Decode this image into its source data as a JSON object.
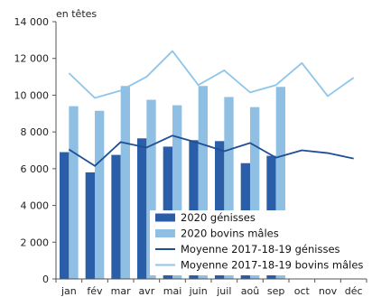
{
  "chart_data": {
    "type": "bar",
    "unit_label": "en têtes",
    "categories": [
      "jan",
      "fév",
      "mar",
      "avr",
      "mai",
      "juin",
      "juil",
      "aoû",
      "sep",
      "oct",
      "nov",
      "déc"
    ],
    "ylim": [
      0,
      14000
    ],
    "yticks": [
      0,
      2000,
      4000,
      6000,
      8000,
      10000,
      12000,
      14000
    ],
    "ytick_labels": [
      "0",
      "2 000",
      "4 000",
      "6 000",
      "8 000",
      "10 000",
      "12 000",
      "14 000"
    ],
    "grid": false,
    "legend_position": "bottom-right inside plot",
    "bar_series": [
      {
        "name": "2020 génisses",
        "color": "#2a5ea8",
        "values": [
          6900,
          5800,
          6750,
          7650,
          7200,
          7550,
          7500,
          6300,
          6700,
          null,
          null,
          null
        ]
      },
      {
        "name": "2020 bovins mâles",
        "color": "#8fbfe3",
        "values": [
          9400,
          9150,
          10500,
          9750,
          9450,
          10500,
          9900,
          9350,
          10450,
          null,
          null,
          null
        ]
      }
    ],
    "line_series": [
      {
        "name": "Moyenne 2017-18-19 génisses",
        "color": "#1f4e94",
        "values": [
          7050,
          6150,
          7450,
          7150,
          7800,
          7400,
          6950,
          7400,
          6600,
          7000,
          6850,
          6550
        ]
      },
      {
        "name": "Moyenne 2017-18-19 bovins mâles",
        "color": "#8ec5ea",
        "values": [
          11200,
          9850,
          10250,
          11000,
          12400,
          10550,
          11350,
          10150,
          10550,
          11750,
          9950,
          10950
        ]
      }
    ]
  }
}
